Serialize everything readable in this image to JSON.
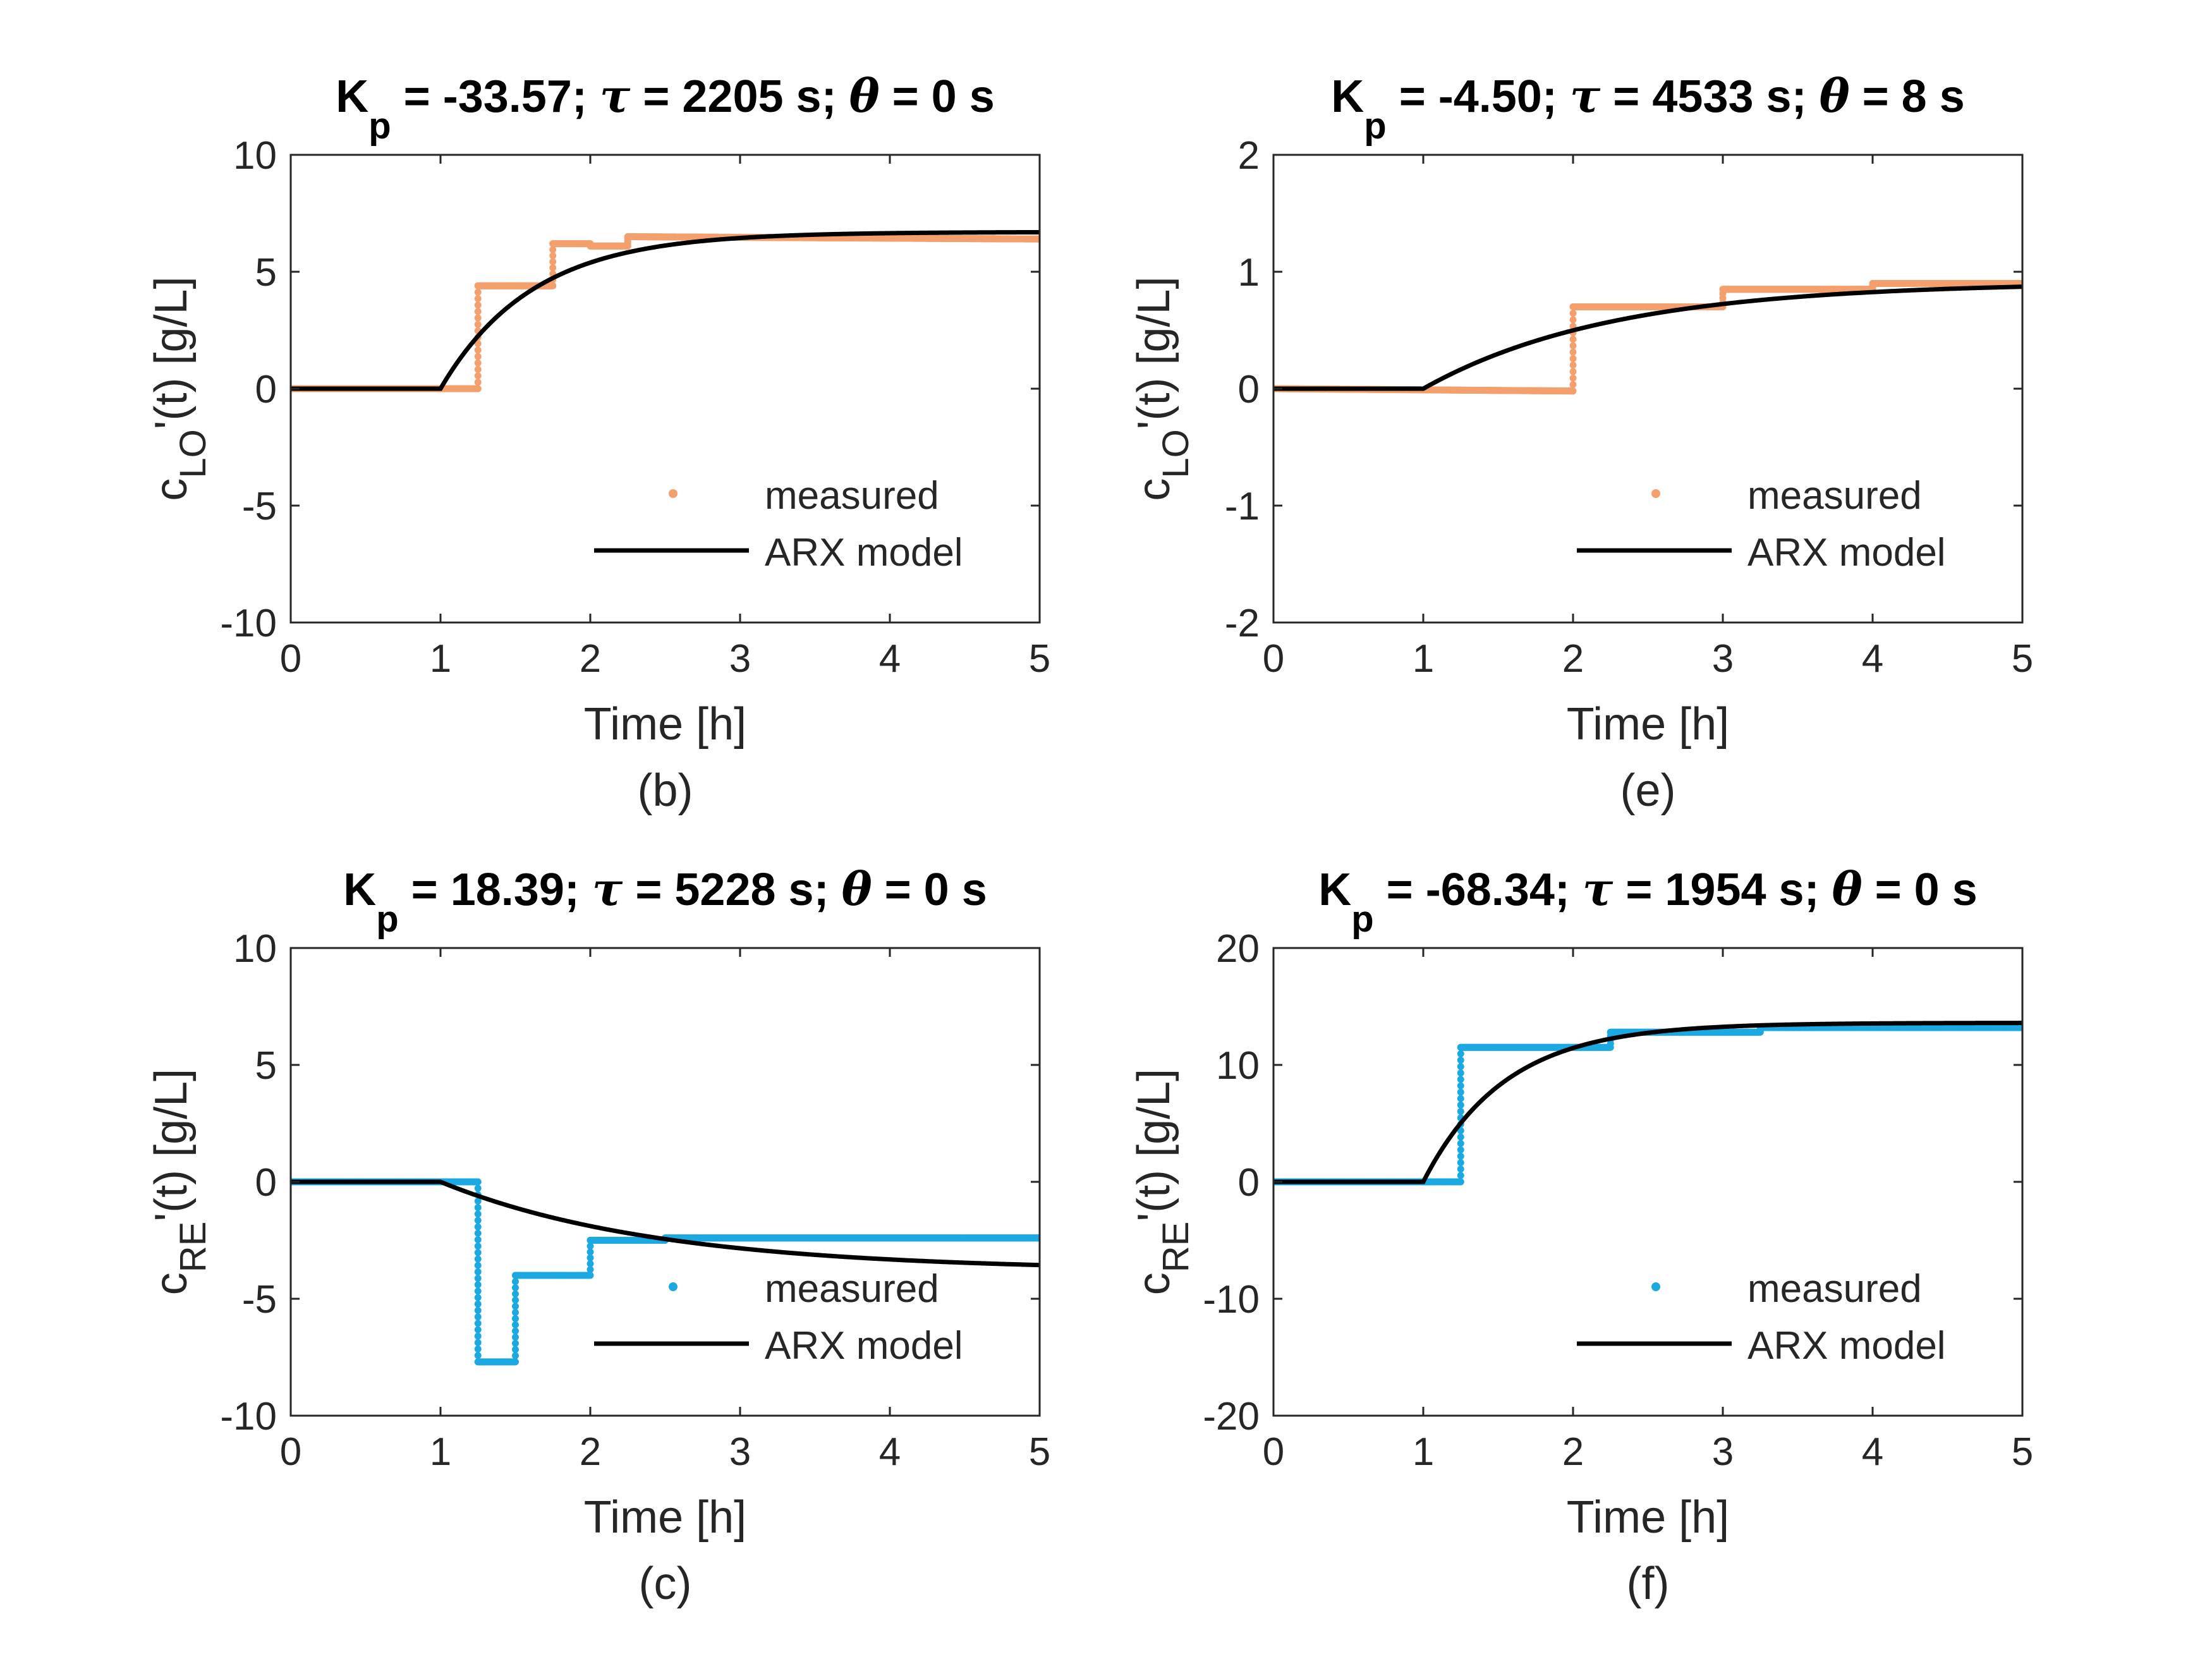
{
  "colors": {
    "orange": "#F4A06E",
    "blue": "#1CA9E1",
    "model": "#000000",
    "axes": "#262626"
  },
  "chart_data": [
    {
      "type": "line",
      "panel": "(b)",
      "title": {
        "k": "K",
        "k_sub": "p",
        "rest": " = -33.57; ",
        "tau": "τ",
        "mid": " = 2205 s; ",
        "theta": "θ",
        "end": " = 0 s"
      },
      "xlabel": "Time [h]",
      "ylabel": {
        "main": "c",
        "sub": "LO",
        "rest": "'(t) [g/L]"
      },
      "xlim": [
        0,
        5
      ],
      "ylim": [
        -10,
        10
      ],
      "xticks": [
        0,
        1,
        2,
        3,
        4,
        5
      ],
      "yticks": [
        -10,
        -5,
        0,
        5,
        10
      ],
      "xtick_labels": [
        "0",
        "1",
        "2",
        "3",
        "4",
        "5"
      ],
      "ytick_labels": [
        "-10",
        "-5",
        "0",
        "5",
        "10"
      ],
      "legend": {
        "position": "bottom-right",
        "measured": "measured",
        "model": "ARX model"
      },
      "series": [
        {
          "name": "measured",
          "style": "dots",
          "color": "orange",
          "x": [
            0,
            1.25,
            1.25,
            1.75,
            1.75,
            2.0,
            2.0,
            2.25,
            2.25,
            5.0
          ],
          "y": [
            0,
            0,
            4.4,
            4.4,
            6.2,
            6.2,
            6.1,
            6.1,
            6.5,
            6.4
          ]
        },
        {
          "name": "ARX model",
          "style": "line",
          "color": "model",
          "delay": 1.0,
          "tau_s": 2205,
          "gain": 6.7
        }
      ]
    },
    {
      "type": "line",
      "panel": "(e)",
      "title": {
        "k": "K",
        "k_sub": "p",
        "rest": " = -4.50; ",
        "tau": "τ",
        "mid": " = 4533 s; ",
        "theta": "θ",
        "end": " = 8 s"
      },
      "xlabel": "Time [h]",
      "ylabel": {
        "main": "c",
        "sub": "LO",
        "rest": "'(t) [g/L]"
      },
      "xlim": [
        0,
        5
      ],
      "ylim": [
        -2,
        2
      ],
      "xticks": [
        0,
        1,
        2,
        3,
        4,
        5
      ],
      "yticks": [
        -2,
        -1,
        0,
        1,
        2
      ],
      "xtick_labels": [
        "0",
        "1",
        "2",
        "3",
        "4",
        "5"
      ],
      "ytick_labels": [
        "-2",
        "-1",
        "0",
        "1",
        "2"
      ],
      "legend": {
        "position": "bottom-right",
        "measured": "measured",
        "model": "ARX model"
      },
      "series": [
        {
          "name": "measured",
          "style": "dots",
          "color": "orange",
          "x": [
            0,
            2.0,
            2.0,
            3.0,
            3.0,
            4.0,
            4.0,
            5.0
          ],
          "y": [
            0,
            -0.02,
            0.7,
            0.7,
            0.85,
            0.85,
            0.9,
            0.9
          ]
        },
        {
          "name": "ARX model",
          "style": "line",
          "color": "model",
          "delay": 1.0,
          "tau_s": 4533,
          "gain": 0.91
        }
      ]
    },
    {
      "type": "line",
      "panel": "(c)",
      "title": {
        "k": "K",
        "k_sub": "p",
        "rest": " = 18.39; ",
        "tau": "τ",
        "mid": " = 5228 s; ",
        "theta": "θ",
        "end": " = 0 s"
      },
      "xlabel": "Time [h]",
      "ylabel": {
        "main": "c",
        "sub": "RE",
        "rest": "'(t) [g/L]"
      },
      "xlim": [
        0,
        5
      ],
      "ylim": [
        -10,
        10
      ],
      "xticks": [
        0,
        1,
        2,
        3,
        4,
        5
      ],
      "yticks": [
        -10,
        -5,
        0,
        5,
        10
      ],
      "xtick_labels": [
        "0",
        "1",
        "2",
        "3",
        "4",
        "5"
      ],
      "ytick_labels": [
        "-10",
        "-5",
        "0",
        "5",
        "10"
      ],
      "legend": {
        "position": "bottom-right",
        "measured": "measured",
        "model": "ARX model"
      },
      "series": [
        {
          "name": "measured",
          "style": "dots",
          "color": "blue",
          "x": [
            0,
            1.25,
            1.25,
            1.5,
            1.5,
            2.0,
            2.0,
            2.5,
            2.5,
            5.0
          ],
          "y": [
            0,
            0,
            -7.7,
            -7.7,
            -4.0,
            -4.0,
            -2.5,
            -2.5,
            -2.4,
            -2.4
          ]
        },
        {
          "name": "ARX model",
          "style": "line",
          "color": "model",
          "delay": 1.0,
          "tau_s": 5228,
          "gain": -3.8
        }
      ]
    },
    {
      "type": "line",
      "panel": "(f)",
      "title": {
        "k": "K",
        "k_sub": "p",
        "rest": " = -68.34; ",
        "tau": "τ",
        "mid": " = 1954 s; ",
        "theta": "θ",
        "end": " = 0 s"
      },
      "xlabel": "Time [h]",
      "ylabel": {
        "main": "c",
        "sub": "RE",
        "rest": "'(t) [g/L]"
      },
      "xlim": [
        0,
        5
      ],
      "ylim": [
        -20,
        20
      ],
      "xticks": [
        0,
        1,
        2,
        3,
        4,
        5
      ],
      "yticks": [
        -20,
        -10,
        0,
        10,
        20
      ],
      "xtick_labels": [
        "0",
        "1",
        "2",
        "3",
        "4",
        "5"
      ],
      "ytick_labels": [
        "-20",
        "-10",
        "0",
        "10",
        "20"
      ],
      "legend": {
        "position": "bottom-right",
        "measured": "measured",
        "model": "ARX model"
      },
      "series": [
        {
          "name": "measured",
          "style": "dots",
          "color": "blue",
          "x": [
            0,
            1.25,
            1.25,
            2.25,
            2.25,
            3.25,
            3.25,
            5.0
          ],
          "y": [
            0,
            0,
            11.5,
            11.5,
            12.8,
            12.8,
            13.2,
            13.2
          ]
        },
        {
          "name": "ARX model",
          "style": "line",
          "color": "model",
          "delay": 1.0,
          "tau_s": 1954,
          "gain": 13.6
        }
      ]
    }
  ]
}
